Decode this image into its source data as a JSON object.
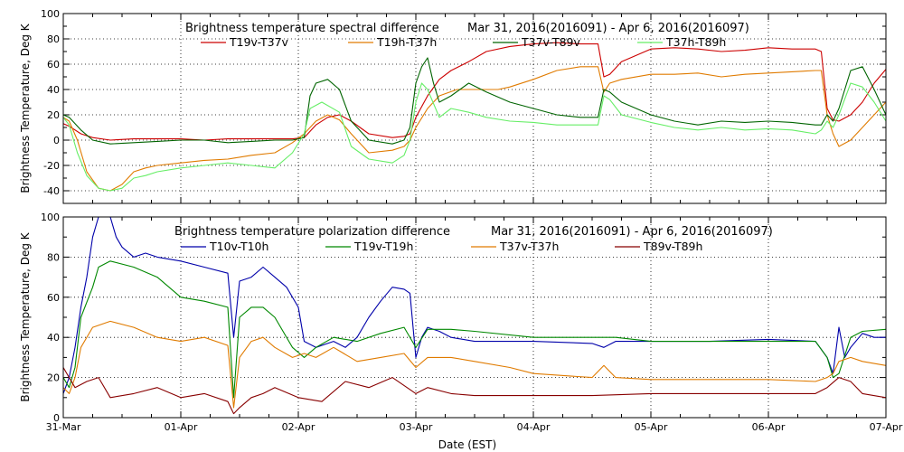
{
  "figure": {
    "xlabel": "Date (EST)",
    "x_tick_labels": [
      "31-Mar",
      "01-Apr",
      "02-Apr",
      "03-Apr",
      "04-Apr",
      "05-Apr",
      "06-Apr",
      "07-Apr"
    ]
  },
  "chart_data": [
    {
      "type": "line",
      "title": "Brightness temperature spectral difference",
      "date_range": "Mar 31, 2016(2016091) - Apr  6, 2016(2016097)",
      "ylabel": "Brightness Temperature, Deg K",
      "ylim": [
        -50,
        100
      ],
      "yticks": [
        -40,
        -20,
        0,
        20,
        40,
        60,
        80,
        100
      ],
      "xlim": [
        0,
        7
      ],
      "x_unit": "days since 31-Mar 00:00 EST",
      "grid": true,
      "legend_position": "top",
      "series": [
        {
          "name": "T19v-T37v",
          "color": "#cc0000",
          "x": [
            0,
            0.05,
            0.15,
            0.25,
            0.4,
            0.6,
            0.8,
            1.0,
            1.2,
            1.4,
            1.6,
            1.8,
            1.95,
            2.05,
            2.15,
            2.25,
            2.35,
            2.45,
            2.6,
            2.8,
            2.9,
            2.95,
            3.0,
            3.1,
            3.2,
            3.3,
            3.45,
            3.6,
            3.8,
            4.0,
            4.2,
            4.4,
            4.55,
            4.6,
            4.65,
            4.75,
            5.0,
            5.2,
            5.4,
            5.6,
            5.8,
            6.0,
            6.2,
            6.4,
            6.45,
            6.5,
            6.55,
            6.6,
            6.7,
            6.8,
            6.9,
            7.0
          ],
          "y": [
            13,
            11,
            5,
            2,
            0,
            1,
            1,
            1,
            0,
            1,
            1,
            1,
            1,
            2,
            12,
            18,
            20,
            15,
            5,
            2,
            3,
            5,
            18,
            35,
            48,
            55,
            62,
            70,
            74,
            76,
            77,
            76,
            76,
            50,
            52,
            62,
            72,
            73,
            72,
            70,
            71,
            73,
            72,
            72,
            70,
            25,
            16,
            15,
            20,
            30,
            45,
            56
          ]
        },
        {
          "name": "T19h-T37h",
          "color": "#e07b00",
          "x": [
            0,
            0.05,
            0.12,
            0.2,
            0.3,
            0.4,
            0.5,
            0.6,
            0.7,
            0.8,
            1.0,
            1.2,
            1.4,
            1.6,
            1.8,
            1.95,
            2.05,
            2.15,
            2.25,
            2.35,
            2.45,
            2.6,
            2.8,
            2.9,
            2.95,
            3.0,
            3.1,
            3.2,
            3.35,
            3.5,
            3.7,
            3.8,
            4.0,
            4.2,
            4.4,
            4.55,
            4.6,
            4.65,
            4.75,
            5.0,
            5.2,
            5.4,
            5.6,
            5.8,
            6.0,
            6.2,
            6.4,
            6.45,
            6.5,
            6.55,
            6.6,
            6.7,
            6.8,
            6.9,
            7.0
          ],
          "y": [
            18,
            15,
            0,
            -25,
            -38,
            -40,
            -35,
            -25,
            -22,
            -20,
            -18,
            -16,
            -15,
            -12,
            -10,
            -2,
            5,
            15,
            20,
            16,
            5,
            -10,
            -8,
            -5,
            0,
            10,
            25,
            35,
            40,
            40,
            40,
            42,
            48,
            55,
            58,
            58,
            38,
            45,
            48,
            52,
            52,
            53,
            50,
            52,
            53,
            54,
            55,
            55,
            20,
            5,
            -5,
            0,
            10,
            20,
            30
          ]
        },
        {
          "name": "T37v-T89v",
          "color": "#006400",
          "x": [
            0,
            0.05,
            0.15,
            0.25,
            0.4,
            0.6,
            0.8,
            1.0,
            1.2,
            1.4,
            1.6,
            1.8,
            1.95,
            2.05,
            2.1,
            2.15,
            2.25,
            2.35,
            2.45,
            2.6,
            2.8,
            2.9,
            2.95,
            3.0,
            3.05,
            3.1,
            3.15,
            3.2,
            3.3,
            3.45,
            3.6,
            3.8,
            4.0,
            4.2,
            4.4,
            4.55,
            4.6,
            4.65,
            4.75,
            5.0,
            5.2,
            5.4,
            5.6,
            5.8,
            6.0,
            6.2,
            6.4,
            6.45,
            6.5,
            6.55,
            6.6,
            6.7,
            6.8,
            6.9,
            7.0
          ],
          "y": [
            20,
            18,
            8,
            0,
            -3,
            -2,
            -1,
            0,
            0,
            -2,
            -1,
            0,
            0,
            2,
            35,
            45,
            48,
            40,
            15,
            0,
            -3,
            0,
            10,
            45,
            58,
            65,
            45,
            30,
            35,
            45,
            38,
            30,
            25,
            20,
            18,
            18,
            40,
            38,
            30,
            20,
            15,
            12,
            15,
            14,
            15,
            14,
            12,
            12,
            20,
            15,
            25,
            55,
            58,
            40,
            20
          ]
        },
        {
          "name": "T37h-T89h",
          "color": "#66ee66",
          "x": [
            0,
            0.05,
            0.12,
            0.2,
            0.3,
            0.4,
            0.5,
            0.6,
            0.7,
            0.8,
            1.0,
            1.2,
            1.4,
            1.6,
            1.8,
            1.95,
            2.05,
            2.1,
            2.2,
            2.35,
            2.45,
            2.6,
            2.8,
            2.9,
            2.95,
            3.0,
            3.05,
            3.1,
            3.2,
            3.3,
            3.45,
            3.6,
            3.8,
            4.0,
            4.2,
            4.4,
            4.55,
            4.6,
            4.65,
            4.75,
            5.0,
            5.2,
            5.4,
            5.6,
            5.8,
            6.0,
            6.2,
            6.4,
            6.45,
            6.5,
            6.55,
            6.6,
            6.7,
            6.8,
            6.9,
            7.0
          ],
          "y": [
            18,
            12,
            -10,
            -28,
            -38,
            -40,
            -38,
            -30,
            -28,
            -25,
            -22,
            -20,
            -18,
            -20,
            -22,
            -10,
            5,
            25,
            30,
            22,
            -5,
            -15,
            -18,
            -12,
            0,
            30,
            45,
            40,
            18,
            25,
            22,
            18,
            15,
            14,
            12,
            12,
            12,
            35,
            32,
            20,
            14,
            10,
            8,
            10,
            8,
            9,
            8,
            5,
            8,
            15,
            10,
            20,
            45,
            42,
            30,
            15
          ]
        }
      ]
    },
    {
      "type": "line",
      "title": "Brightness temperature polarization difference",
      "date_range": "Mar 31, 2016(2016091) - Apr  6, 2016(2016097)",
      "ylabel": "Brightness Temperature, Deg K",
      "ylim": [
        0,
        100
      ],
      "yticks": [
        0,
        20,
        40,
        60,
        80,
        100
      ],
      "xlim": [
        0,
        7
      ],
      "x_unit": "days since 31-Mar 00:00 EST",
      "grid": true,
      "legend_position": "top",
      "series": [
        {
          "name": "T10v-T10h",
          "color": "#0000aa",
          "x": [
            0,
            0.05,
            0.1,
            0.15,
            0.2,
            0.25,
            0.3,
            0.4,
            0.45,
            0.5,
            0.6,
            0.7,
            0.8,
            1.0,
            1.2,
            1.4,
            1.45,
            1.5,
            1.6,
            1.7,
            1.8,
            1.9,
            2.0,
            2.05,
            2.15,
            2.3,
            2.4,
            2.5,
            2.6,
            2.7,
            2.8,
            2.9,
            2.95,
            3.0,
            3.05,
            3.1,
            3.2,
            3.3,
            3.5,
            4.0,
            4.5,
            4.6,
            4.7,
            5.0,
            5.5,
            6.0,
            6.4,
            6.5,
            6.55,
            6.6,
            6.65,
            6.7,
            6.8,
            6.9,
            7.0
          ],
          "y": [
            12,
            20,
            35,
            55,
            70,
            90,
            100,
            100,
            90,
            85,
            80,
            82,
            80,
            78,
            75,
            72,
            40,
            68,
            70,
            75,
            70,
            65,
            55,
            38,
            35,
            38,
            35,
            40,
            50,
            58,
            65,
            64,
            62,
            30,
            40,
            45,
            43,
            40,
            38,
            38,
            37,
            35,
            38,
            38,
            38,
            39,
            38,
            30,
            22,
            45,
            30,
            35,
            42,
            40,
            40
          ]
        },
        {
          "name": "T19v-T19h",
          "color": "#008800",
          "x": [
            0,
            0.05,
            0.1,
            0.15,
            0.25,
            0.3,
            0.4,
            0.6,
            0.8,
            1.0,
            1.2,
            1.4,
            1.45,
            1.5,
            1.6,
            1.7,
            1.8,
            1.95,
            2.05,
            2.15,
            2.3,
            2.5,
            2.7,
            2.9,
            3.0,
            3.1,
            3.3,
            3.5,
            4.0,
            4.5,
            4.6,
            4.7,
            5.0,
            5.5,
            6.0,
            6.4,
            6.5,
            6.55,
            6.6,
            6.7,
            6.8,
            7.0
          ],
          "y": [
            20,
            15,
            25,
            50,
            65,
            75,
            78,
            75,
            70,
            60,
            58,
            55,
            10,
            50,
            55,
            55,
            50,
            35,
            30,
            35,
            40,
            38,
            42,
            45,
            35,
            44,
            44,
            43,
            40,
            40,
            40,
            40,
            38,
            38,
            38,
            38,
            30,
            20,
            22,
            40,
            43,
            44
          ]
        },
        {
          "name": "T37v-T37h",
          "color": "#e07b00",
          "x": [
            0,
            0.05,
            0.1,
            0.15,
            0.25,
            0.4,
            0.6,
            0.8,
            1.0,
            1.2,
            1.4,
            1.45,
            1.5,
            1.6,
            1.7,
            1.8,
            1.95,
            2.05,
            2.15,
            2.3,
            2.5,
            2.7,
            2.9,
            3.0,
            3.1,
            3.3,
            3.5,
            3.8,
            4.0,
            4.5,
            4.6,
            4.7,
            5.0,
            5.5,
            6.0,
            6.4,
            6.5,
            6.55,
            6.6,
            6.7,
            6.8,
            7.0
          ],
          "y": [
            15,
            12,
            20,
            35,
            45,
            48,
            45,
            40,
            38,
            40,
            36,
            5,
            30,
            38,
            40,
            35,
            30,
            32,
            30,
            35,
            28,
            30,
            32,
            25,
            30,
            30,
            28,
            25,
            22,
            20,
            26,
            20,
            19,
            19,
            19,
            18,
            20,
            22,
            28,
            30,
            28,
            26
          ]
        },
        {
          "name": "T89v-T89h",
          "color": "#880000",
          "x": [
            0,
            0.05,
            0.1,
            0.2,
            0.3,
            0.4,
            0.6,
            0.8,
            1.0,
            1.2,
            1.4,
            1.45,
            1.5,
            1.6,
            1.7,
            1.8,
            2.0,
            2.2,
            2.4,
            2.6,
            2.8,
            2.95,
            3.0,
            3.1,
            3.3,
            3.5,
            4.0,
            4.5,
            5.0,
            5.5,
            6.0,
            6.4,
            6.5,
            6.6,
            6.7,
            6.8,
            7.0
          ],
          "y": [
            25,
            20,
            15,
            18,
            20,
            10,
            12,
            15,
            10,
            12,
            8,
            2,
            5,
            10,
            12,
            15,
            10,
            8,
            18,
            15,
            20,
            14,
            12,
            15,
            12,
            11,
            11,
            11,
            12,
            12,
            12,
            12,
            15,
            20,
            18,
            12,
            10
          ]
        }
      ]
    }
  ]
}
